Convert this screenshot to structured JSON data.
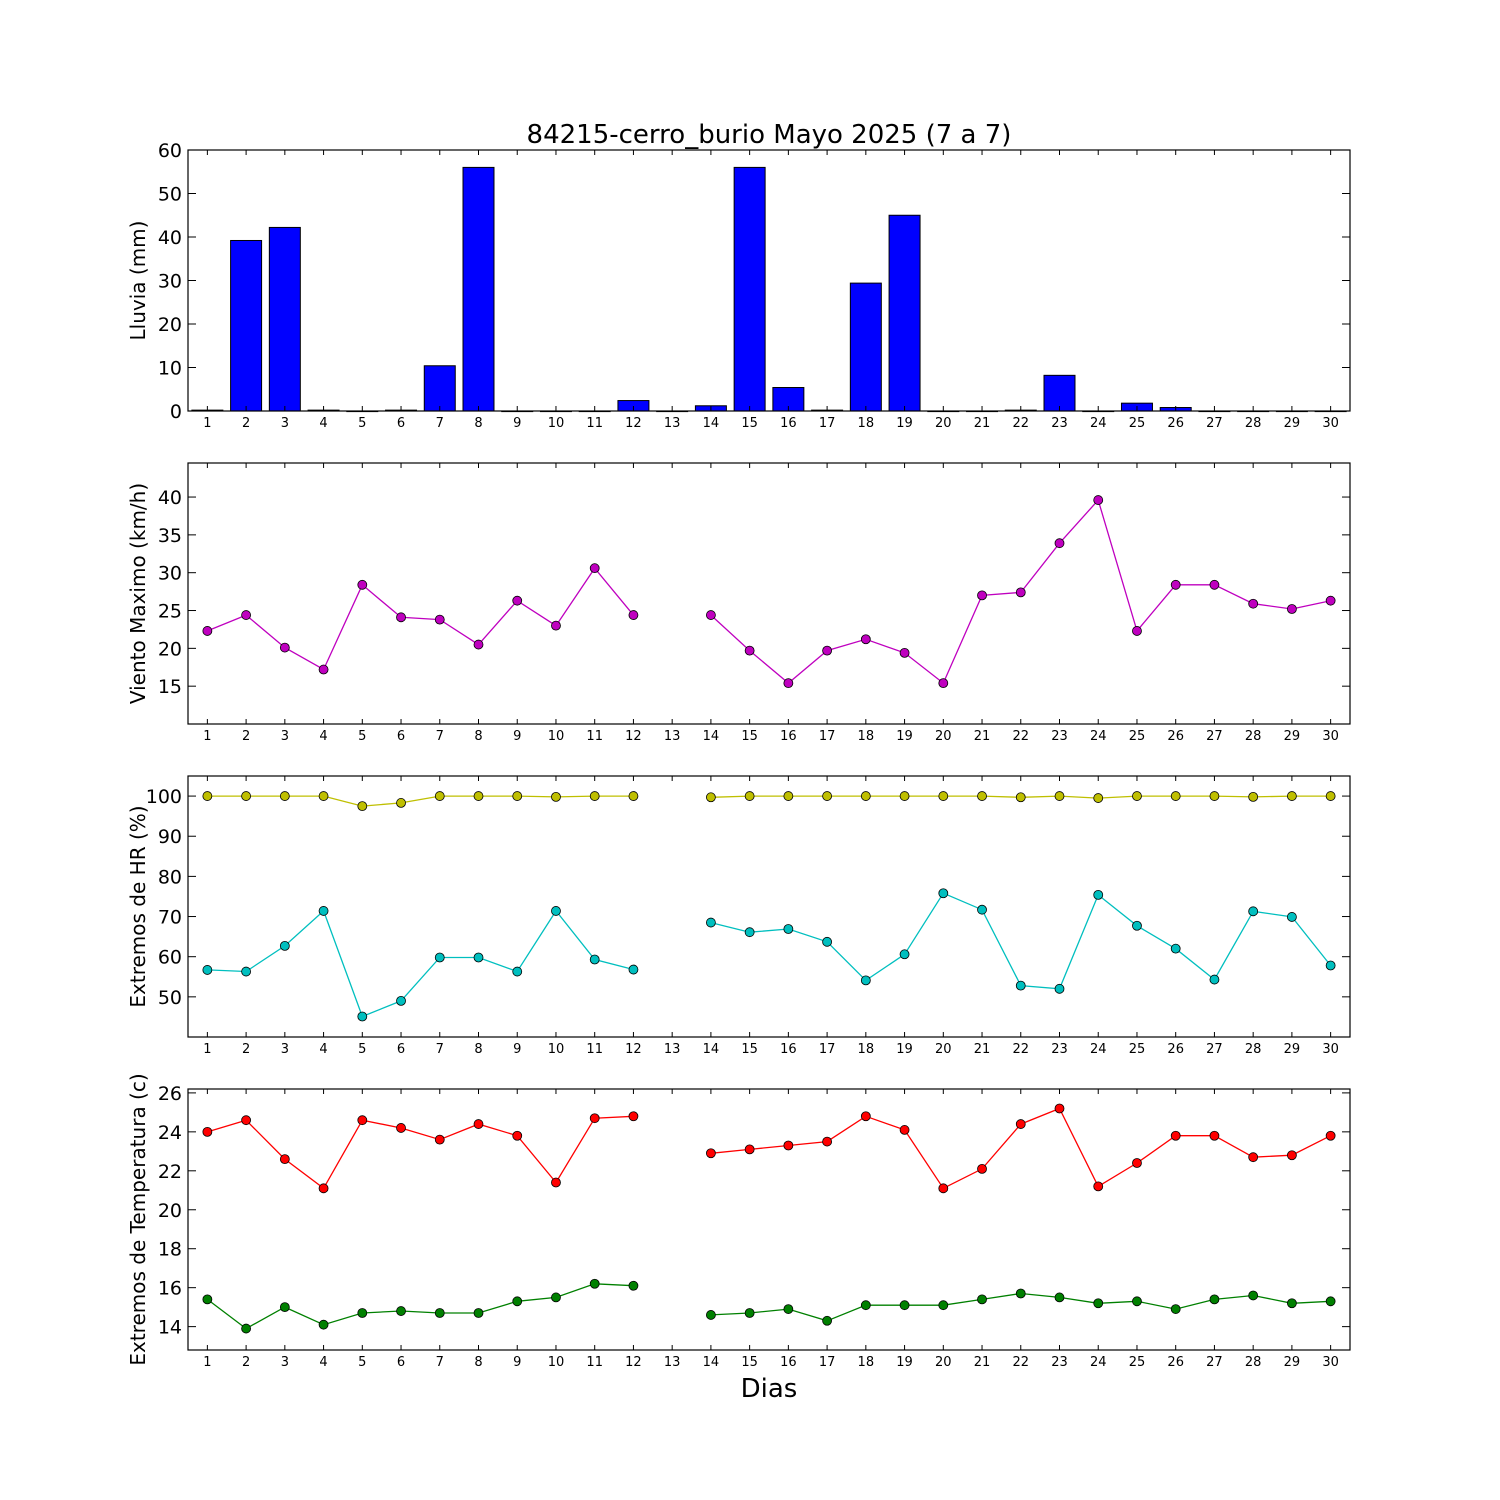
{
  "title": "84215-cerro_burio Mayo 2025  (7 a 7)",
  "xlabel": "Dias",
  "colors": {
    "rain": "#0000ff",
    "wind": "#bf00bf",
    "hr_max": "#bfbf00",
    "hr_min": "#00bfbf",
    "temp_max": "#ff0000",
    "temp_min": "#008000"
  },
  "chart_data": [
    {
      "type": "bar",
      "ylabel": "Lluvia (mm)",
      "ylim": [
        0,
        60
      ],
      "yticks": [
        0,
        10,
        20,
        30,
        40,
        50,
        60
      ],
      "x": [
        1,
        2,
        3,
        4,
        5,
        6,
        7,
        8,
        9,
        10,
        11,
        12,
        13,
        14,
        15,
        16,
        17,
        18,
        19,
        20,
        21,
        22,
        23,
        24,
        25,
        26,
        27,
        28,
        29,
        30
      ],
      "values": [
        0.2,
        39.2,
        42.2,
        0.2,
        0,
        0.2,
        10.4,
        56.0,
        0,
        0,
        0,
        2.4,
        0,
        1.2,
        56.0,
        5.4,
        0.2,
        29.4,
        45.0,
        0,
        0,
        0.2,
        8.2,
        0,
        1.8,
        0.8,
        0,
        0,
        0,
        0
      ]
    },
    {
      "type": "line",
      "ylabel": "Viento Maximo (km/h)",
      "ylim": [
        10,
        44.5
      ],
      "yticks": [
        15,
        20,
        25,
        30,
        35,
        40
      ],
      "x": [
        1,
        2,
        3,
        4,
        5,
        6,
        7,
        8,
        9,
        10,
        11,
        12,
        13,
        14,
        15,
        16,
        17,
        18,
        19,
        20,
        21,
        22,
        23,
        24,
        25,
        26,
        27,
        28,
        29,
        30
      ],
      "series": [
        {
          "color_key": "wind",
          "values": [
            22.3,
            24.4,
            20.1,
            17.2,
            28.4,
            24.1,
            23.8,
            20.5,
            26.3,
            23.0,
            30.6,
            24.4,
            null,
            24.4,
            19.7,
            15.4,
            19.7,
            21.2,
            19.4,
            15.4,
            27.0,
            27.4,
            33.9,
            39.6,
            22.3,
            28.4,
            28.4,
            25.9,
            25.2,
            26.3
          ]
        }
      ]
    },
    {
      "type": "line",
      "ylabel": "Extremos de HR (%)",
      "ylim": [
        40,
        105
      ],
      "yticks": [
        50,
        60,
        70,
        80,
        90,
        100
      ],
      "x": [
        1,
        2,
        3,
        4,
        5,
        6,
        7,
        8,
        9,
        10,
        11,
        12,
        13,
        14,
        15,
        16,
        17,
        18,
        19,
        20,
        21,
        22,
        23,
        24,
        25,
        26,
        27,
        28,
        29,
        30
      ],
      "series": [
        {
          "color_key": "hr_max",
          "values": [
            100,
            100,
            100,
            100,
            97.5,
            98.3,
            100,
            100,
            100,
            99.8,
            100,
            100,
            null,
            99.7,
            100,
            100,
            100,
            100,
            100,
            100,
            100,
            99.7,
            100,
            99.5,
            100,
            100,
            100,
            99.8,
            100,
            100
          ]
        },
        {
          "color_key": "hr_min",
          "values": [
            56.7,
            56.3,
            62.7,
            71.4,
            45.1,
            49.0,
            59.8,
            59.8,
            56.3,
            71.4,
            59.3,
            56.8,
            null,
            68.5,
            66.1,
            66.9,
            63.7,
            54.1,
            60.6,
            75.8,
            71.7,
            52.8,
            52.0,
            75.4,
            67.7,
            62.0,
            54.3,
            71.3,
            69.9,
            57.8
          ]
        }
      ]
    },
    {
      "type": "line",
      "ylabel": "Extremos de Temperatura (c)",
      "ylim": [
        12.8,
        26.2
      ],
      "yticks": [
        14,
        16,
        18,
        20,
        22,
        24,
        26
      ],
      "x": [
        1,
        2,
        3,
        4,
        5,
        6,
        7,
        8,
        9,
        10,
        11,
        12,
        13,
        14,
        15,
        16,
        17,
        18,
        19,
        20,
        21,
        22,
        23,
        24,
        25,
        26,
        27,
        28,
        29,
        30
      ],
      "series": [
        {
          "color_key": "temp_max",
          "values": [
            24.0,
            24.6,
            22.6,
            21.1,
            24.6,
            24.2,
            23.6,
            24.4,
            23.8,
            21.4,
            24.7,
            24.8,
            null,
            22.9,
            23.1,
            23.3,
            23.5,
            24.8,
            24.1,
            21.1,
            22.1,
            24.4,
            25.2,
            21.2,
            22.4,
            23.8,
            23.8,
            22.7,
            22.8,
            23.8
          ]
        },
        {
          "color_key": "temp_min",
          "values": [
            15.4,
            13.9,
            15.0,
            14.1,
            14.7,
            14.8,
            14.7,
            14.7,
            15.3,
            15.5,
            16.2,
            16.1,
            null,
            14.6,
            14.7,
            14.9,
            14.3,
            15.1,
            15.1,
            15.1,
            15.4,
            15.7,
            15.5,
            15.2,
            15.3,
            14.9,
            15.4,
            15.6,
            15.2,
            15.3
          ]
        }
      ]
    }
  ]
}
